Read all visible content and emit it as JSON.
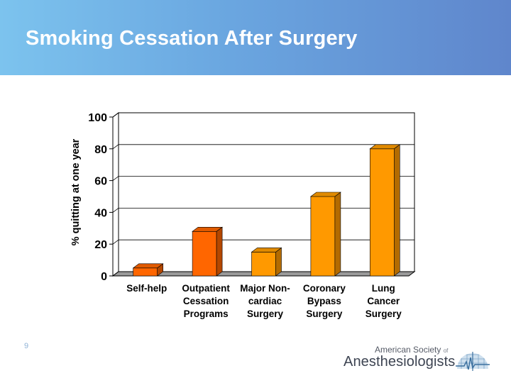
{
  "slide": {
    "title": "Smoking Cessation After Surgery",
    "page_number": "9"
  },
  "logo": {
    "line1": "American Society",
    "of": "of",
    "line2": "Anesthesiologists",
    "emblem": "caduceus-heartbeat-emblem-icon"
  },
  "chart_data": {
    "type": "bar",
    "title": "",
    "xlabel": "",
    "ylabel": "% quitting at one year",
    "categories": [
      [
        "Self-help"
      ],
      [
        "Outpatient",
        "Cessation",
        "Programs"
      ],
      [
        "Major Non-",
        "cardiac",
        "Surgery"
      ],
      [
        "Coronary",
        "Bypass",
        "Surgery"
      ],
      [
        "Lung",
        "Cancer",
        "Surgery"
      ]
    ],
    "values": [
      5,
      28,
      15,
      50,
      80
    ],
    "ylim": [
      0,
      100
    ],
    "yticks": [
      0,
      20,
      40,
      60,
      80,
      100
    ],
    "grid": true,
    "legend": "none",
    "colors": [
      "#ff6600",
      "#ff6600",
      "#ff9900",
      "#ff9900",
      "#ff9900"
    ],
    "side_colors": [
      "#b34700",
      "#b34700",
      "#b36b00",
      "#b36b00",
      "#b36b00"
    ],
    "top_colors": [
      "#e05a00",
      "#e05a00",
      "#e08a00",
      "#e08a00",
      "#e08a00"
    ]
  }
}
